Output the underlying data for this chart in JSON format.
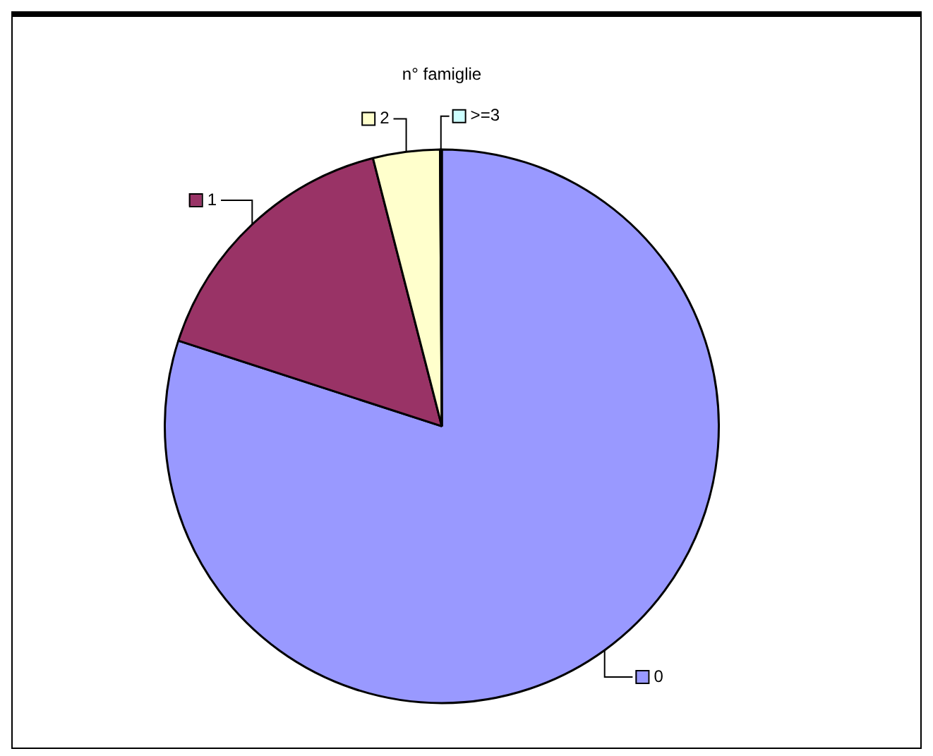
{
  "chart_data": {
    "type": "pie",
    "title": "n° famiglie",
    "categories": [
      "0",
      "1",
      "2",
      ">=3"
    ],
    "values": [
      80,
      16,
      3.9,
      0.1
    ],
    "colors": [
      "#9999ff",
      "#993366",
      "#ffffcc",
      "#ccffff"
    ],
    "legend": "right"
  }
}
